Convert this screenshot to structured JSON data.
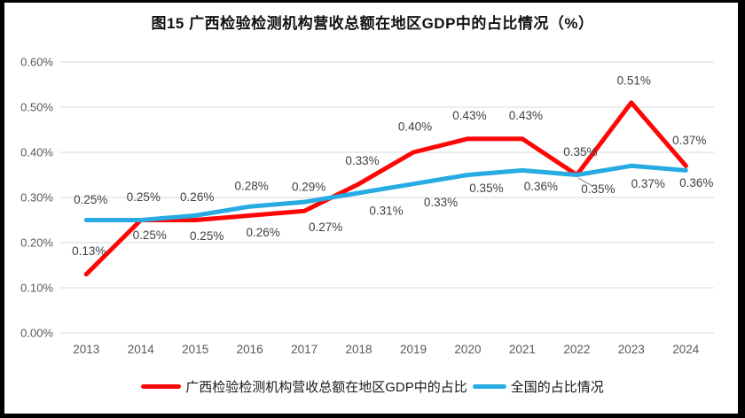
{
  "frame": {
    "border_color": "#000000",
    "background": "#ffffff"
  },
  "title": "图15 广西检验检测机构营收总额在地区GDP中的占比情况（%）",
  "colors": {
    "guangxi_line": "#fe0606",
    "national_line": "#27abe2",
    "gridline": "#d9d9d9",
    "axis_text": "#595959",
    "data_label_text": "#3f3f3f",
    "leader_line": "#a6a6a6"
  },
  "chart_data": {
    "type": "line",
    "title": "图15 广西检验检测机构营收总额在地区GDP中的占比情况（%）",
    "categories": [
      "2013",
      "2014",
      "2015",
      "2016",
      "2017",
      "2018",
      "2019",
      "2020",
      "2021",
      "2022",
      "2023",
      "2024"
    ],
    "series": [
      {
        "name": "广西检验检测机构营收总额在地区GDP中的占比",
        "color": "#fe0606",
        "values": [
          0.13,
          0.25,
          0.25,
          0.26,
          0.27,
          0.33,
          0.4,
          0.43,
          0.43,
          0.35,
          0.51,
          0.37
        ],
        "point_labels": [
          "0.13%",
          "0.25%",
          "0.25%",
          "0.26%",
          "0.27%",
          "0.33%",
          "0.40%",
          "0.43%",
          "0.43%",
          "0.35%",
          "0.51%",
          "0.37%"
        ],
        "label_offsets": [
          [
            3,
            -26
          ],
          [
            10,
            17
          ],
          [
            13,
            18
          ],
          [
            15,
            19
          ],
          [
            24,
            18
          ],
          [
            4,
            -26
          ],
          [
            2,
            -29
          ],
          [
            2,
            -26
          ],
          [
            4,
            -26
          ],
          [
            24,
            16
          ],
          [
            3,
            -25
          ],
          [
            4,
            -29
          ]
        ]
      },
      {
        "name": "全国的占比情况",
        "color": "#27abe2",
        "values": [
          0.25,
          0.25,
          0.26,
          0.28,
          0.29,
          0.31,
          0.33,
          0.35,
          0.36,
          0.35,
          0.37,
          0.36
        ],
        "point_labels": [
          "0.25%",
          "0.25%",
          "0.26%",
          "0.28%",
          "0.29%",
          "0.31%",
          "0.33%",
          "0.35%",
          "0.36%",
          "0.35%",
          "0.37%",
          "0.36%"
        ],
        "label_offsets": [
          [
            5,
            -23
          ],
          [
            3,
            -26
          ],
          [
            2,
            -21
          ],
          [
            2,
            -23
          ],
          [
            5,
            -17
          ],
          [
            31,
            20
          ],
          [
            31,
            21
          ],
          [
            21,
            15
          ],
          [
            21,
            18
          ],
          [
            4,
            -26
          ],
          [
            19,
            20
          ],
          [
            12,
            14
          ]
        ]
      }
    ],
    "y_axis": {
      "tick_labels": [
        "0.00%",
        "0.10%",
        "0.20%",
        "0.30%",
        "0.40%",
        "0.50%",
        "0.60%"
      ],
      "min": 0.0,
      "max": 0.6,
      "step": 0.1
    },
    "xlabel": "",
    "ylabel": "",
    "unit": "%",
    "grid": true,
    "data_labels": true,
    "legend_position": "bottom",
    "annotations": {
      "leader_line": {
        "from": [
          652,
          201
        ],
        "to": [
          668,
          210
        ]
      }
    }
  }
}
